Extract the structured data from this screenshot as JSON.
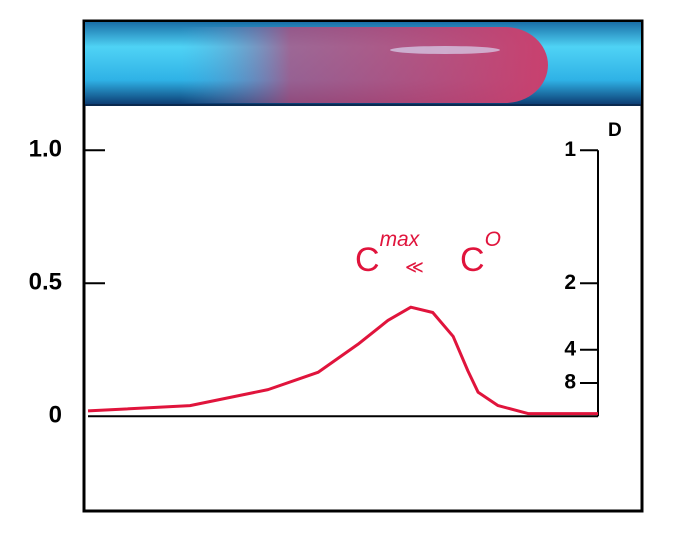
{
  "chart_data": {
    "type": "line",
    "x": [
      0,
      20,
      35.3,
      45.1,
      52.9,
      58.8,
      63.3,
      67.6,
      71.6,
      74.5,
      76.5,
      80.4,
      86.3,
      100
    ],
    "xlim": [
      0,
      100
    ],
    "series": [
      {
        "color": "#e0143c",
        "values": [
          0.02,
          0.04,
          0.1,
          0.165,
          0.27,
          0.36,
          0.41,
          0.39,
          0.3,
          0.17,
          0.09,
          0.04,
          0.01,
          0.01
        ]
      }
    ],
    "ylim": [
      -0.36,
      1.17
    ],
    "yticks": [
      0,
      0.5,
      {
        "value": 1,
        "label": "1.0"
      }
    ],
    "y2label": "D",
    "y2scale": "reciprocal",
    "y2ticks": [
      1,
      2,
      4,
      8
    ],
    "annotation": {
      "c1": "C",
      "sup1": "max",
      "rel": "≪",
      "c2": "C",
      "sup2": "O"
    }
  }
}
